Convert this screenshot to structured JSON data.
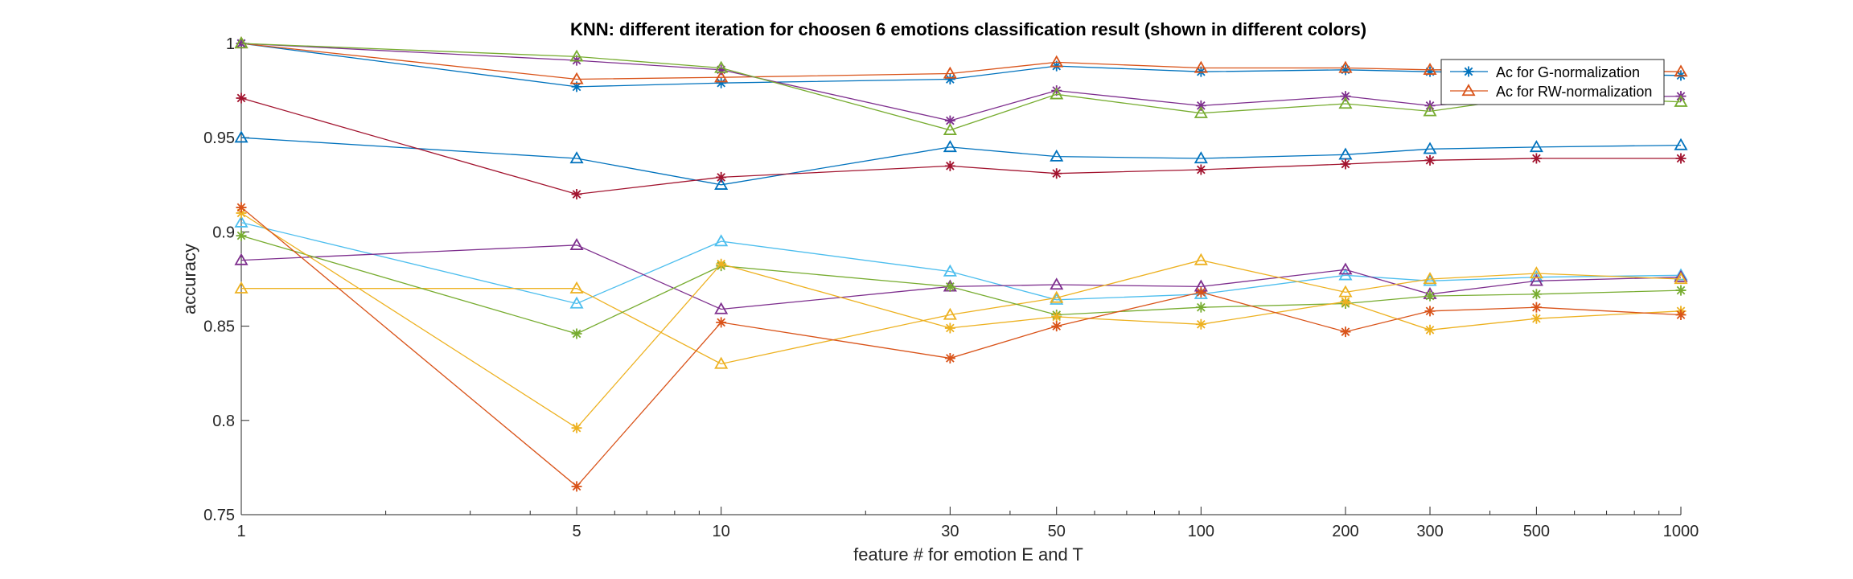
{
  "chart_data": {
    "type": "line",
    "title": "KNN: different iteration for choosen 6 emotions classification result (shown in different colors)",
    "xlabel": "feature # for emotion E and T",
    "ylabel": "accuracy",
    "xscale": "log",
    "xlim": [
      1,
      1000
    ],
    "ylim": [
      0.75,
      1.0
    ],
    "x": [
      1,
      5,
      10,
      30,
      50,
      100,
      200,
      300,
      500,
      1000
    ],
    "x_tick_labels": [
      "1",
      "5",
      "10",
      "30",
      "50",
      "100",
      "200",
      "300",
      "500",
      "1000"
    ],
    "y_ticks": [
      0.75,
      0.8,
      0.85,
      0.9,
      0.95,
      1.0
    ],
    "y_tick_labels": [
      "0.75",
      "0.8",
      "0.85",
      "0.9",
      "0.95",
      "1"
    ],
    "grid": false,
    "legend_position": "top-right",
    "legend": [
      {
        "label": "Ac for G-normalization",
        "color": "#0072BD",
        "marker": "star"
      },
      {
        "label": "Ac for RW-normalization",
        "color": "#D95319",
        "marker": "triangle"
      }
    ],
    "series": [
      {
        "color": "#0072BD",
        "marker": "star",
        "values": [
          1.0,
          0.977,
          0.979,
          0.981,
          0.988,
          0.985,
          0.986,
          0.985,
          0.984,
          0.983
        ]
      },
      {
        "color": "#D95319",
        "marker": "triangle",
        "values": [
          1.0,
          0.981,
          0.982,
          0.984,
          0.99,
          0.987,
          0.987,
          0.986,
          0.986,
          0.985
        ]
      },
      {
        "color": "#7E2F8E",
        "marker": "star",
        "values": [
          1.0,
          0.991,
          0.986,
          0.959,
          0.975,
          0.967,
          0.972,
          0.967,
          0.971,
          0.972
        ]
      },
      {
        "color": "#77AC30",
        "marker": "triangle",
        "values": [
          1.0,
          0.993,
          0.987,
          0.954,
          0.973,
          0.963,
          0.968,
          0.964,
          0.972,
          0.969
        ]
      },
      {
        "color": "#0072BD",
        "marker": "triangle",
        "values": [
          0.95,
          0.939,
          0.925,
          0.945,
          0.94,
          0.939,
          0.941,
          0.944,
          0.945,
          0.946
        ]
      },
      {
        "color": "#A2142F",
        "marker": "star",
        "values": [
          0.971,
          0.92,
          0.929,
          0.935,
          0.931,
          0.933,
          0.936,
          0.938,
          0.939,
          0.939
        ]
      },
      {
        "color": "#4DBEEE",
        "marker": "triangle",
        "values": [
          0.905,
          0.862,
          0.895,
          0.879,
          0.864,
          0.867,
          0.877,
          0.874,
          0.876,
          0.877
        ]
      },
      {
        "color": "#7E2F8E",
        "marker": "triangle",
        "values": [
          0.885,
          0.893,
          0.859,
          0.871,
          0.872,
          0.871,
          0.88,
          0.867,
          0.874,
          0.876
        ]
      },
      {
        "color": "#EDB120",
        "marker": "triangle",
        "values": [
          0.87,
          0.87,
          0.83,
          0.856,
          0.865,
          0.885,
          0.868,
          0.875,
          0.878,
          0.875
        ]
      },
      {
        "color": "#77AC30",
        "marker": "star",
        "values": [
          0.898,
          0.846,
          0.882,
          0.871,
          0.856,
          0.86,
          0.862,
          0.866,
          0.867,
          0.869
        ]
      },
      {
        "color": "#EDB120",
        "marker": "star",
        "values": [
          0.91,
          0.796,
          0.883,
          0.849,
          0.855,
          0.851,
          0.863,
          0.848,
          0.854,
          0.858
        ]
      },
      {
        "color": "#D95319",
        "marker": "star",
        "values": [
          0.913,
          0.765,
          0.852,
          0.833,
          0.85,
          0.868,
          0.847,
          0.858,
          0.86,
          0.856
        ]
      }
    ]
  }
}
